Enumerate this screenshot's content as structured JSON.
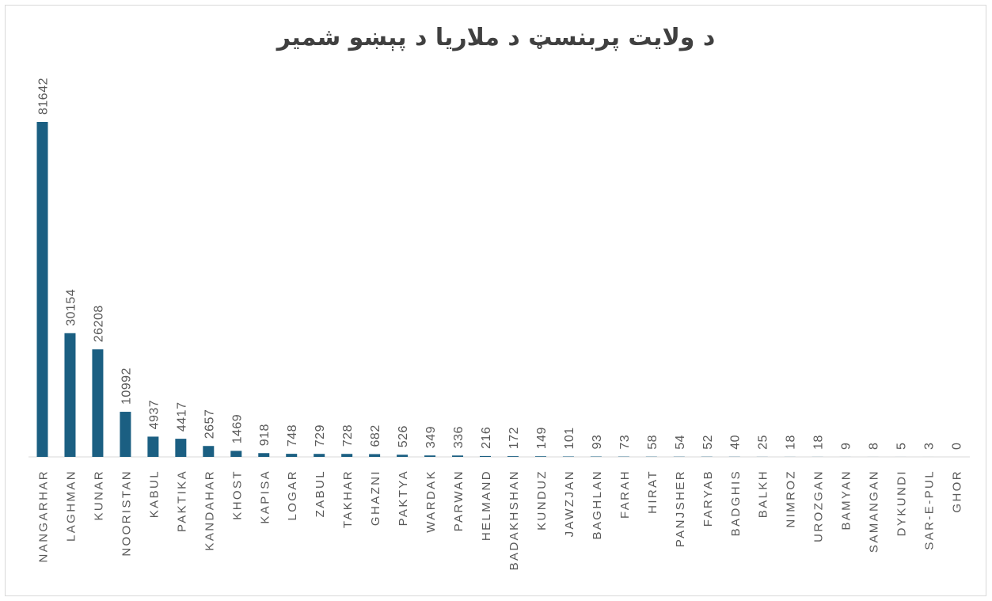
{
  "chart_data": {
    "type": "bar",
    "title": "د ولایت پربنسټ د ملاریا د پېښو شمیر",
    "xlabel": "",
    "ylabel": "",
    "ylim": [
      0,
      81642
    ],
    "grid": false,
    "legend": "none",
    "bar_color": "#1b5f82",
    "axis_color": "#d9d9d9",
    "label_color": "#595959",
    "categories": [
      "NANGARHAR",
      "LAGHMAN",
      "KUNAR",
      "NOORISTAN",
      "KABUL",
      "PAKTIKA",
      "KANDAHAR",
      "KHOST",
      "KAPISA",
      "LOGAR",
      "ZABUL",
      "TAKHAR",
      "GHAZNI",
      "PAKTYA",
      "WARDAK",
      "PARWAN",
      "HELMAND",
      "BADAKHSHAN",
      "KUNDUZ",
      "JAWZJAN",
      "BAGHLAN",
      "FARAH",
      "HIRAT",
      "PANJSHER",
      "FARYAB",
      "BADGHIS",
      "BALKH",
      "NIMROZ",
      "UROZGAN",
      "BAMYAN",
      "SAMANGAN",
      "DYKUNDI",
      "SAR-E-PUL",
      "GHOR"
    ],
    "values": [
      81642,
      30154,
      26208,
      10992,
      4937,
      4417,
      2657,
      1469,
      918,
      748,
      729,
      728,
      682,
      526,
      349,
      336,
      216,
      172,
      149,
      101,
      93,
      73,
      58,
      54,
      52,
      40,
      25,
      18,
      18,
      9,
      8,
      5,
      3,
      0
    ]
  }
}
